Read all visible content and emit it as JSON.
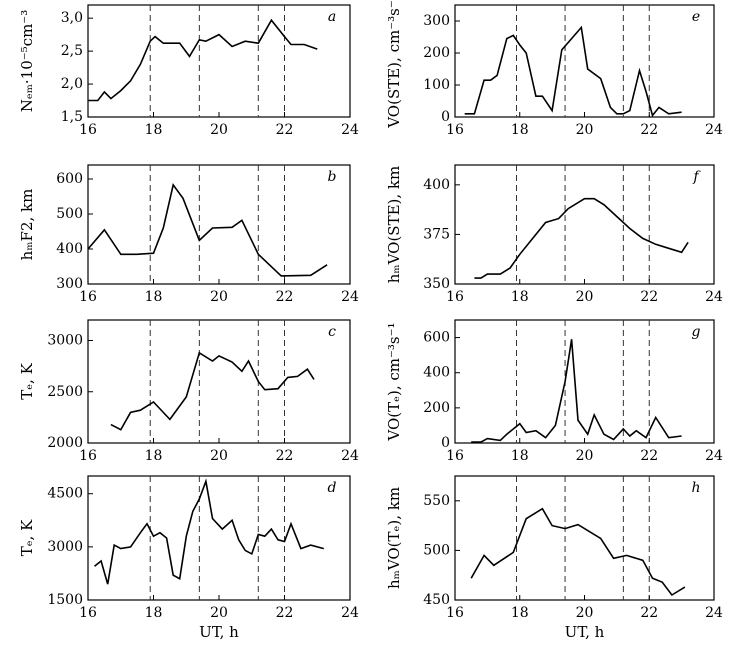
{
  "chart_data": [
    {
      "type": "line",
      "label": "a",
      "ylabel": "Nₑₘ·10⁻⁵cm⁻³",
      "color": "#000000",
      "x": [
        16,
        16.3,
        16.5,
        16.7,
        17,
        17.3,
        17.6,
        17.9,
        18.05,
        18.3,
        18.8,
        19.1,
        19.4,
        19.6,
        20,
        20.4,
        20.8,
        21.2,
        21.6,
        22,
        22.2,
        22.6,
        23
      ],
      "values": [
        1.75,
        1.75,
        1.88,
        1.78,
        1.9,
        2.05,
        2.3,
        2.65,
        2.72,
        2.62,
        2.62,
        2.42,
        2.67,
        2.65,
        2.75,
        2.57,
        2.65,
        2.62,
        2.97,
        2.72,
        2.6,
        2.6,
        2.53
      ],
      "xlim": [
        16,
        24
      ],
      "xticks": [
        16,
        18,
        20,
        22,
        24
      ],
      "ylim": [
        1.5,
        3.2
      ],
      "yticks": [
        {
          "value": 1.5,
          "label": "1,5"
        },
        {
          "value": 2.0,
          "label": "2,0"
        },
        {
          "value": 2.5,
          "label": "2,5"
        },
        {
          "value": 3.0,
          "label": "3,0"
        }
      ],
      "vlines": [
        17.9,
        19.4,
        21.2,
        22.0
      ]
    },
    {
      "type": "line",
      "label": "b",
      "ylabel": "hₘF2, km",
      "color": "#000000",
      "x": [
        16,
        16.5,
        17,
        17.5,
        18,
        18.3,
        18.6,
        18.9,
        19.4,
        19.8,
        20.4,
        20.7,
        21.2,
        21.9,
        22.8,
        23.3
      ],
      "values": [
        400,
        455,
        385,
        385,
        388,
        460,
        583,
        545,
        425,
        460,
        462,
        482,
        385,
        323,
        325,
        355
      ],
      "xlim": [
        16,
        24
      ],
      "xticks": [
        16,
        18,
        20,
        22,
        24
      ],
      "ylim": [
        300,
        640
      ],
      "yticks": [
        300,
        400,
        500,
        600
      ],
      "vlines": [
        17.9,
        19.4,
        21.2,
        22.0
      ]
    },
    {
      "type": "line",
      "label": "c",
      "ylabel": "Tₑ, K",
      "color": "#000000",
      "x": [
        16.7,
        17,
        17.3,
        17.6,
        18,
        18.5,
        19,
        19.4,
        19.8,
        20,
        20.4,
        20.7,
        20.9,
        21.2,
        21.4,
        21.8,
        22.1,
        22.4,
        22.7,
        22.9
      ],
      "values": [
        2180,
        2130,
        2300,
        2320,
        2400,
        2230,
        2450,
        2880,
        2800,
        2850,
        2790,
        2700,
        2800,
        2600,
        2520,
        2530,
        2640,
        2650,
        2720,
        2620
      ],
      "xlim": [
        16,
        24
      ],
      "xticks": [
        16,
        18,
        20,
        22,
        24
      ],
      "ylim": [
        2000,
        3200
      ],
      "yticks": [
        2000,
        2500,
        3000
      ],
      "vlines": [
        17.9,
        19.4,
        21.2,
        22.0
      ]
    },
    {
      "type": "line",
      "label": "d",
      "ylabel": "Tₑ, K",
      "xlabel": "UT, h",
      "color": "#000000",
      "x": [
        16.2,
        16.4,
        16.6,
        16.8,
        17,
        17.3,
        17.6,
        17.8,
        18,
        18.2,
        18.4,
        18.6,
        18.8,
        19,
        19.2,
        19.4,
        19.6,
        19.8,
        20.1,
        20.4,
        20.6,
        20.8,
        21,
        21.2,
        21.4,
        21.6,
        21.8,
        22,
        22.2,
        22.5,
        22.8,
        23.2
      ],
      "values": [
        2450,
        2600,
        1950,
        3050,
        2950,
        3000,
        3400,
        3650,
        3300,
        3400,
        3250,
        2200,
        2100,
        3300,
        4000,
        4350,
        4850,
        3800,
        3500,
        3750,
        3200,
        2900,
        2800,
        3350,
        3300,
        3500,
        3200,
        3150,
        3650,
        2950,
        3050,
        2950
      ],
      "xlim": [
        16,
        24
      ],
      "xticks": [
        16,
        18,
        20,
        22,
        24
      ],
      "ylim": [
        1500,
        5000
      ],
      "yticks": [
        1500,
        3000,
        4500
      ],
      "vlines": [
        17.9,
        19.4,
        21.2,
        22.0
      ]
    },
    {
      "type": "line",
      "label": "e",
      "ylabel": "VO(STE), cm⁻³s⁻¹",
      "color": "#000000",
      "x": [
        16.3,
        16.6,
        16.9,
        17.1,
        17.3,
        17.6,
        17.8,
        18,
        18.2,
        18.5,
        18.7,
        19,
        19.3,
        19.6,
        19.9,
        20.1,
        20.5,
        20.8,
        21,
        21.2,
        21.4,
        21.7,
        21.9,
        22.1,
        22.3,
        22.6,
        23
      ],
      "values": [
        10,
        10,
        115,
        115,
        130,
        245,
        255,
        225,
        200,
        65,
        65,
        20,
        210,
        245,
        280,
        150,
        120,
        30,
        10,
        10,
        20,
        145,
        80,
        5,
        30,
        10,
        15
      ],
      "xlim": [
        16,
        24
      ],
      "xticks": [
        16,
        18,
        20,
        22,
        24
      ],
      "ylim": [
        0,
        350
      ],
      "yticks": [
        0,
        100,
        200,
        300
      ],
      "vlines": [
        17.9,
        19.4,
        21.2,
        22.0
      ]
    },
    {
      "type": "line",
      "label": "f",
      "ylabel": "hₘVO(STE), km",
      "color": "#000000",
      "x": [
        16.6,
        16.8,
        17,
        17.4,
        17.7,
        18,
        18.4,
        18.8,
        19.2,
        19.5,
        20,
        20.3,
        20.6,
        21,
        21.4,
        21.8,
        22.2,
        22.6,
        23,
        23.2
      ],
      "values": [
        353,
        353,
        355,
        355,
        358,
        365,
        373,
        381,
        383,
        388,
        393,
        393,
        390,
        384,
        378,
        373,
        370,
        368,
        366,
        371
      ],
      "xlim": [
        16,
        24
      ],
      "xticks": [
        16,
        18,
        20,
        22,
        24
      ],
      "ylim": [
        350,
        410
      ],
      "yticks": [
        350,
        375,
        400
      ],
      "vlines": [
        17.9,
        19.4,
        21.2,
        22.0
      ]
    },
    {
      "type": "line",
      "label": "g",
      "ylabel": "VO(Tₑ), cm⁻³s⁻¹",
      "color": "#000000",
      "x": [
        16.5,
        16.8,
        17,
        17.4,
        17.6,
        18,
        18.2,
        18.5,
        18.8,
        19.1,
        19.4,
        19.6,
        19.8,
        20.1,
        20.3,
        20.6,
        20.9,
        21.2,
        21.4,
        21.6,
        21.9,
        22.2,
        22.6,
        23
      ],
      "values": [
        5,
        5,
        25,
        15,
        50,
        110,
        60,
        70,
        30,
        100,
        350,
        590,
        130,
        50,
        160,
        50,
        20,
        80,
        40,
        70,
        30,
        145,
        30,
        40
      ],
      "xlim": [
        16,
        24
      ],
      "xticks": [
        16,
        18,
        20,
        22,
        24
      ],
      "ylim": [
        0,
        700
      ],
      "yticks": [
        0,
        200,
        400,
        600
      ],
      "vlines": [
        17.9,
        19.4,
        21.2,
        22.0
      ]
    },
    {
      "type": "line",
      "label": "h",
      "ylabel": "hₘVO(Tₑ), km",
      "xlabel": "UT, h",
      "color": "#000000",
      "x": [
        16.5,
        16.9,
        17.2,
        17.8,
        18.2,
        18.7,
        19,
        19.4,
        19.8,
        20.5,
        20.9,
        21.3,
        21.8,
        22.1,
        22.4,
        22.7,
        23.1
      ],
      "values": [
        472,
        495,
        485,
        498,
        532,
        542,
        525,
        522,
        526,
        512,
        492,
        495,
        490,
        472,
        468,
        455,
        463
      ],
      "xlim": [
        16,
        24
      ],
      "xticks": [
        16,
        18,
        20,
        22,
        24
      ],
      "ylim": [
        450,
        575
      ],
      "yticks": [
        450,
        500,
        550
      ],
      "vlines": [
        17.9,
        19.4,
        21.2,
        22.0
      ]
    }
  ]
}
